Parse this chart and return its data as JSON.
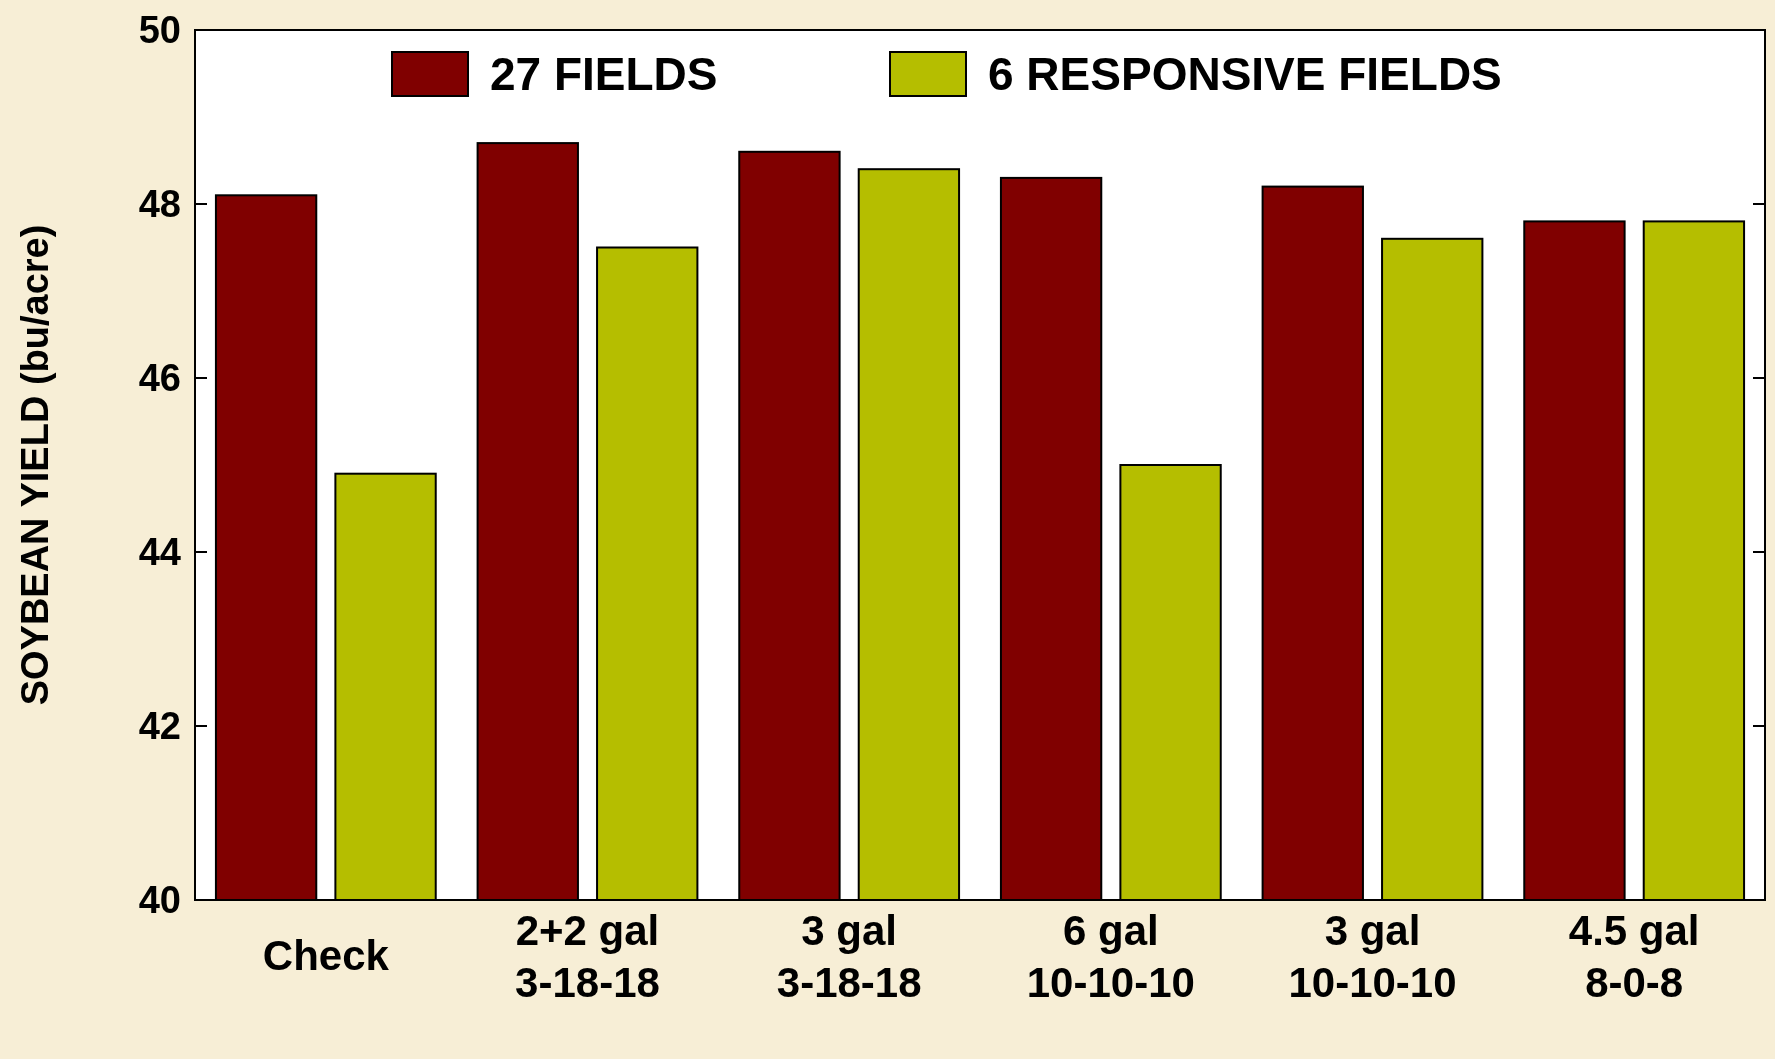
{
  "chart_data": {
    "type": "bar",
    "ylabel": "SOYBEAN YIELD (bu/acre)",
    "categories": [
      "Check",
      "2+2 gal\n3-18-18",
      "3 gal\n3-18-18",
      "6 gal\n10-10-10",
      "3 gal\n10-10-10",
      "4.5 gal\n8-0-8"
    ],
    "series": [
      {
        "name": "27 FIELDS",
        "color": "#800000",
        "values": [
          48.1,
          48.7,
          48.6,
          48.3,
          48.2,
          47.8
        ]
      },
      {
        "name": "6 RESPONSIVE FIELDS",
        "color": "#b5be00",
        "values": [
          44.9,
          47.5,
          48.4,
          45.0,
          47.6,
          47.8
        ]
      }
    ],
    "ylim": [
      40,
      50
    ],
    "yticks": [
      40,
      42,
      44,
      46,
      48,
      50
    ],
    "grid": false,
    "legend": "top"
  }
}
